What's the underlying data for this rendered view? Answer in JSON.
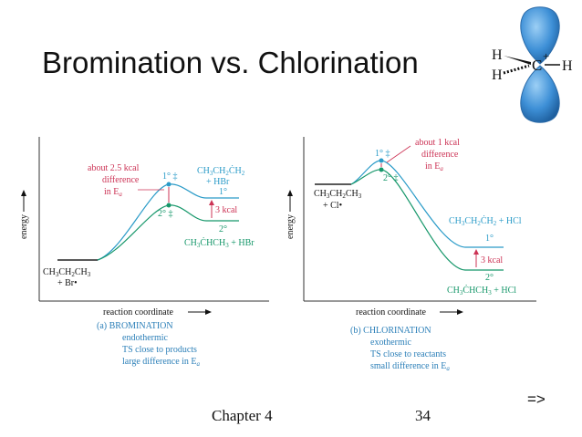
{
  "slide": {
    "title": "Bromination vs. Chlorination",
    "footer_chapter": "Chapter 4",
    "footer_page": "34",
    "next_arrow": "=>"
  },
  "molecule": {
    "h_top": "H",
    "h_bottom": "H",
    "carbon": "C",
    "charge": "+",
    "h_right": "H",
    "lobe_color": "#3d8fd6"
  },
  "bromination": {
    "y_axis_label": "energy",
    "x_axis_label": "reaction coordinate",
    "reactant_line1": "CH3CH2CH3",
    "reactant_line2": "+ Br•",
    "annotation": [
      "about 2.5 kcal",
      "difference",
      "in Ea"
    ],
    "ts_primary": "1° ‡",
    "ts_secondary": "2° ‡",
    "product_primary_line1": "CH3CH2CH2",
    "product_primary_line2": "+ HBr",
    "label_primary": "1°",
    "gap_label": "3 kcal",
    "label_secondary": "2°",
    "product_secondary": "CH3CHCH3 + HBr",
    "caption": [
      "(a) BROMINATION",
      "endothermic",
      "TS close to products",
      "large difference in Ea"
    ]
  },
  "chlorination": {
    "y_axis_label": "energy",
    "x_axis_label": "reaction coordinate",
    "reactant_line1": "CH3CH2CH3",
    "reactant_line2": "+ Cl•",
    "annotation": [
      "about 1 kcal",
      "difference",
      "in Ea"
    ],
    "ts_primary": "1° ‡",
    "ts_secondary": "2° ‡",
    "product_primary": "CH3CH2CH2 + HCl",
    "label_primary": "1°",
    "gap_label": "3 kcal",
    "label_secondary": "2°",
    "product_secondary": "CH3CHCH3 + HCl",
    "caption": [
      "(b) CHLORINATION",
      "exothermic",
      "TS close to reactants",
      "small difference in Ea"
    ]
  },
  "colors": {
    "annotation": "#cc3355",
    "primary_curve": "#2a9bc8",
    "secondary_curve": "#16976a",
    "caption": "#2b7fb8",
    "axis": "#333333"
  }
}
